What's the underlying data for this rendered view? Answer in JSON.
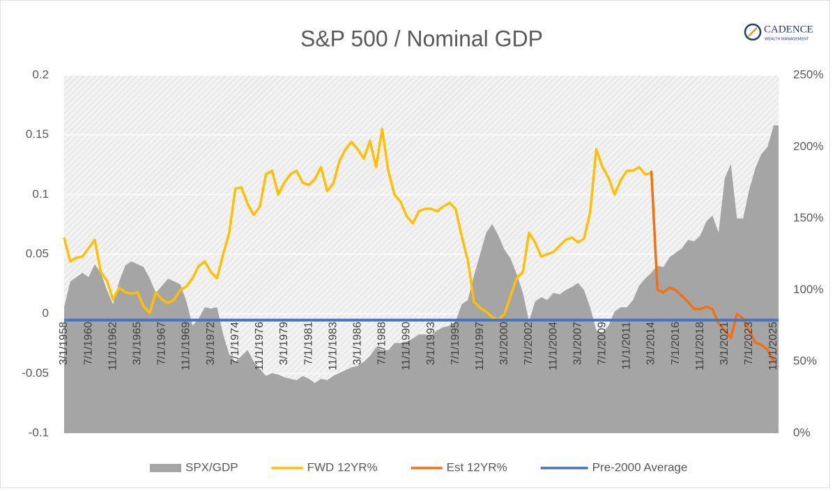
{
  "logo": {
    "text": "CADENCE",
    "subtext": "WEALTH MANAGEMENT"
  },
  "chart_data": {
    "type": "combo",
    "title": "S&P 500 / Nominal GDP",
    "categories": [
      "3/1/1958",
      null,
      null,
      null,
      "7/1/1960",
      null,
      null,
      null,
      "11/1/1962",
      null,
      null,
      null,
      "3/1/1965",
      null,
      null,
      null,
      "7/1/1967",
      null,
      null,
      null,
      "11/1/1969",
      null,
      null,
      null,
      "3/1/1972",
      null,
      null,
      null,
      "7/1/1974",
      null,
      null,
      null,
      "11/1/1976",
      null,
      null,
      null,
      "3/1/1979",
      null,
      null,
      null,
      "7/1/1981",
      null,
      null,
      null,
      "11/1/1983",
      null,
      null,
      null,
      "3/1/1986",
      null,
      null,
      null,
      "7/1/1988",
      null,
      null,
      null,
      "11/1/1990",
      null,
      null,
      null,
      "3/1/1993",
      null,
      null,
      null,
      "7/1/1995",
      null,
      null,
      null,
      "11/1/1997",
      null,
      null,
      null,
      "3/1/2000",
      null,
      null,
      null,
      "7/1/2002",
      null,
      null,
      null,
      "11/1/2004",
      null,
      null,
      null,
      "3/1/2007",
      null,
      null,
      null,
      "7/1/2009",
      null,
      null,
      null,
      "11/1/2011",
      null,
      null,
      null,
      "3/1/2014",
      null,
      null,
      null,
      "7/1/2016",
      null,
      null,
      null,
      "11/1/2018",
      null,
      null,
      null,
      "3/1/2021",
      null,
      null,
      null,
      "7/1/2023",
      null,
      null,
      null,
      "11/1/2025"
    ],
    "series": [
      {
        "name": "SPX/GDP",
        "type": "area",
        "axis": "y2",
        "color": "#a5a5a5",
        "values": [
          88,
          106,
          109,
          112,
          109,
          118,
          112,
          100,
          90,
          106,
          117,
          120,
          118,
          116,
          108,
          98,
          103,
          108,
          106,
          104,
          92,
          75,
          80,
          88,
          87,
          88,
          69,
          55,
          50,
          54,
          58,
          50,
          45,
          40,
          42,
          41,
          39,
          38,
          37,
          40,
          38,
          35,
          38,
          37,
          40,
          42,
          44,
          46,
          47,
          50,
          54,
          60,
          58,
          58,
          63,
          63,
          64,
          66,
          69,
          69,
          68,
          72,
          74,
          75,
          78,
          90,
          93,
          110,
          125,
          140,
          146,
          138,
          128,
          122,
          111,
          98,
          78,
          92,
          95,
          93,
          98,
          97,
          100,
          102,
          105,
          100,
          88,
          72,
          70,
          75,
          85,
          88,
          88,
          93,
          103,
          108,
          112,
          117,
          116,
          123,
          126,
          129,
          135,
          134,
          138,
          148,
          152,
          140,
          178,
          188,
          150,
          150,
          170,
          185,
          195,
          200,
          215
        ]
      },
      {
        "name": "FWD 12YR%",
        "type": "line",
        "color": "#ffc000",
        "values": [
          0.064,
          0.044,
          0.047,
          0.048,
          0.055,
          0.062,
          0.035,
          0.028,
          0.012,
          0.022,
          0.018,
          0.017,
          0.018,
          0.006,
          0.001,
          0.018,
          0.012,
          0.009,
          0.012,
          0.02,
          0.023,
          0.03,
          0.04,
          0.044,
          0.035,
          0.03,
          0.05,
          0.068,
          0.105,
          0.106,
          0.092,
          0.083,
          0.09,
          0.117,
          0.12,
          0.1,
          0.11,
          0.117,
          0.12,
          0.11,
          0.108,
          0.113,
          0.123,
          0.103,
          0.109,
          0.128,
          0.138,
          0.144,
          0.138,
          0.13,
          0.145,
          0.123,
          0.155,
          0.12,
          0.1,
          0.094,
          0.082,
          0.076,
          0.086,
          0.088,
          0.088,
          0.086,
          0.09,
          0.093,
          0.088,
          0.065,
          0.045,
          0.01,
          0.005,
          0.002,
          -0.003,
          -0.005,
          0,
          0.015,
          0.03,
          0.035,
          0.068,
          0.06,
          0.048,
          0.05,
          0.052,
          0.057,
          0.062,
          0.064,
          0.06,
          0.063,
          0.085,
          0.138,
          0.123,
          0.114,
          0.1,
          0.112,
          0.12,
          0.12,
          0.123,
          0.117,
          0.118,
          null,
          null,
          null,
          null,
          null,
          null,
          null,
          null,
          null,
          null,
          null,
          null,
          null,
          null,
          null,
          null,
          null,
          null,
          null,
          null
        ]
      },
      {
        "name": "Est 12YR%",
        "type": "line",
        "color": "#f4700e",
        "values": [
          null,
          null,
          null,
          null,
          null,
          null,
          null,
          null,
          null,
          null,
          null,
          null,
          null,
          null,
          null,
          null,
          null,
          null,
          null,
          null,
          null,
          null,
          null,
          null,
          null,
          null,
          null,
          null,
          null,
          null,
          null,
          null,
          null,
          null,
          null,
          null,
          null,
          null,
          null,
          null,
          null,
          null,
          null,
          null,
          null,
          null,
          null,
          null,
          null,
          null,
          null,
          null,
          null,
          null,
          null,
          null,
          null,
          null,
          null,
          null,
          null,
          null,
          null,
          null,
          null,
          null,
          null,
          null,
          null,
          null,
          null,
          null,
          null,
          null,
          null,
          null,
          null,
          null,
          null,
          null,
          null,
          null,
          null,
          null,
          null,
          null,
          null,
          null,
          null,
          null,
          null,
          null,
          null,
          null,
          null,
          null,
          0.12,
          0.02,
          0.018,
          0.022,
          0.02,
          0.015,
          0.01,
          0.004,
          0.004,
          0.006,
          0.004,
          -0.008,
          -0.014,
          -0.02,
          0,
          -0.004,
          -0.014,
          -0.024,
          -0.026,
          -0.03,
          -0.04
        ]
      },
      {
        "name": "Pre-2000 Average",
        "type": "hline",
        "axis": "y2",
        "color": "#4472c4",
        "value": 79
      }
    ],
    "ylim": [
      -0.1,
      0.2
    ],
    "yticks": [
      -0.1,
      -0.05,
      0,
      0.05,
      0.1,
      0.15,
      0.2
    ],
    "y2lim": [
      0,
      250
    ],
    "y2ticks": [
      {
        "value": 0,
        "label": "0%"
      },
      {
        "value": 50,
        "label": "50%"
      },
      {
        "value": 100,
        "label": "100%"
      },
      {
        "value": 150,
        "label": "150%"
      },
      {
        "value": 200,
        "label": "200%"
      },
      {
        "value": 250,
        "label": "250%"
      }
    ],
    "grid": true,
    "legend": "bottom"
  }
}
